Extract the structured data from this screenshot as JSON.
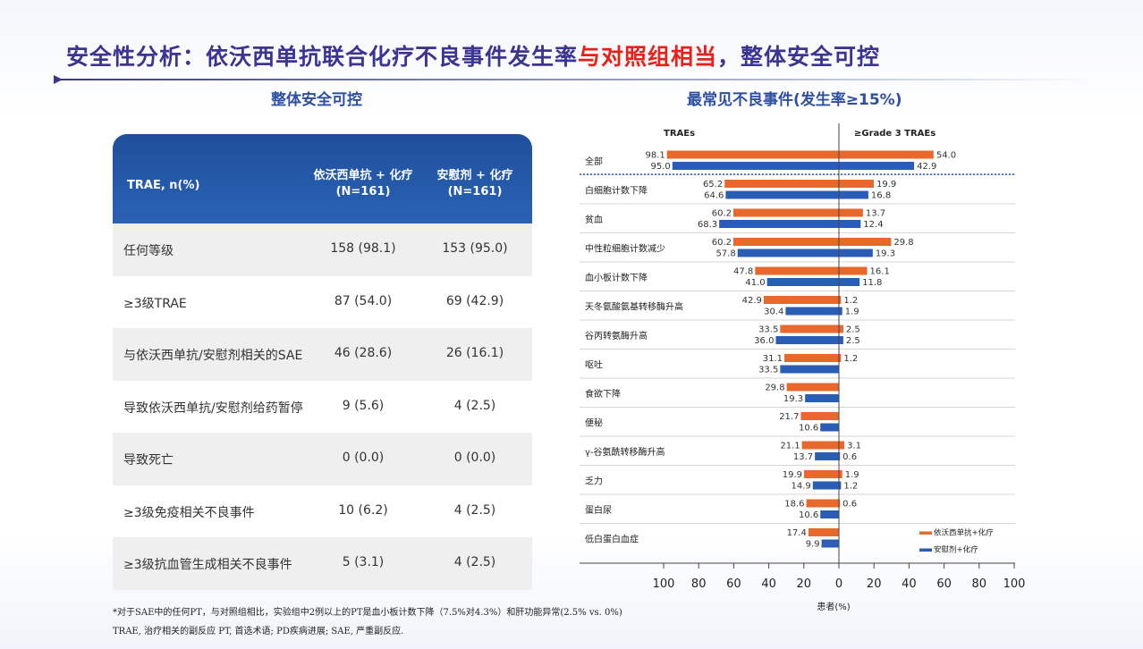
{
  "slide": {
    "title_main": "安全性分析：依沃西单抗联合化疗不良事件发生率",
    "title_highlight": "与对照组相当",
    "title_tail": "，整体安全可控"
  },
  "table": {
    "subtitle": "整体安全可控",
    "header": {
      "col1": "TRAE, n(%)",
      "col2_line1": "依沃西单抗 + 化疗",
      "col2_line2": "(N=161)",
      "col3_line1": "安慰剂 + 化疗",
      "col3_line2": "(N=161)"
    },
    "rows": [
      {
        "label": "任何等级",
        "a": "158 (98.1)",
        "b": "153 (95.0)"
      },
      {
        "label": "≥3级TRAE",
        "a": "87 (54.0)",
        "b": "69 (42.9)"
      },
      {
        "label": "与依沃西单抗/安慰剂相关的SAE",
        "a": "46 (28.6)",
        "b": "26 (16.1)"
      },
      {
        "label": "导致依沃西单抗/安慰剂给药暂停",
        "a": "9 (5.6)",
        "b": "4 (2.5)"
      },
      {
        "label": "导致死亡",
        "a": "0 (0.0)",
        "b": "0 (0.0)"
      },
      {
        "label": "≥3级免疫相关不良事件",
        "a": "10 (6.2)",
        "b": "4 (2.5)"
      },
      {
        "label": "≥3级抗血管生成相关不良事件",
        "a": "5 (3.1)",
        "b": "4 (2.5)"
      }
    ],
    "footnote1": "*对于SAE中的任何PT，与对照组相比，实验组中2例以上的PT是血小板计数下降（7.5%对4.3%）和肝功能异常(2.5% vs. 0%)",
    "footnote2": "TRAE, 治疗相关的副反应    PT, 首选术语;      PD疾病进展;          SAE, 严重副反应."
  },
  "chart_data": {
    "type": "bar",
    "title": "最常见不良事件(发生率≥15%)",
    "left_header": "TRAEs",
    "right_header": "≥Grade 3 TRAEs",
    "xlabel": "患者(%)",
    "xlim": [
      -100,
      100
    ],
    "x_ticks": [
      "100",
      "80",
      "60",
      "40",
      "20",
      "0",
      "20",
      "40",
      "60",
      "80",
      "100"
    ],
    "categories": [
      "全部",
      "白细胞计数下降",
      "贫血",
      "中性粒细胞计数减少",
      "血小板计数下降",
      "天冬氨酸氨基转移酶升高",
      "谷丙转氨酶升高",
      "呕吐",
      "食欲下降",
      "便秘",
      "γ-谷氨酰转移酶升高",
      "乏力",
      "蛋白尿",
      "低白蛋白血症"
    ],
    "series": [
      {
        "name": "依沃西单抗+化疗",
        "color": "#e8672a",
        "trae": [
          98.1,
          65.2,
          60.2,
          60.2,
          47.8,
          42.9,
          33.5,
          31.1,
          29.8,
          21.7,
          21.1,
          19.9,
          18.6,
          17.4
        ],
        "grade3": [
          54.0,
          19.9,
          13.7,
          29.8,
          16.1,
          1.2,
          2.5,
          1.2,
          null,
          null,
          3.1,
          1.9,
          0.6,
          null
        ]
      },
      {
        "name": "安慰剂+化疗",
        "color": "#2a5db5",
        "trae": [
          95.0,
          64.6,
          68.3,
          57.8,
          41.0,
          30.4,
          36.0,
          33.5,
          19.3,
          10.6,
          13.7,
          14.9,
          10.6,
          9.9
        ],
        "grade3": [
          42.9,
          16.8,
          12.4,
          19.3,
          11.8,
          1.9,
          2.5,
          null,
          null,
          null,
          0.6,
          1.2,
          null,
          null
        ]
      }
    ],
    "legend_position": "bottom-right"
  }
}
